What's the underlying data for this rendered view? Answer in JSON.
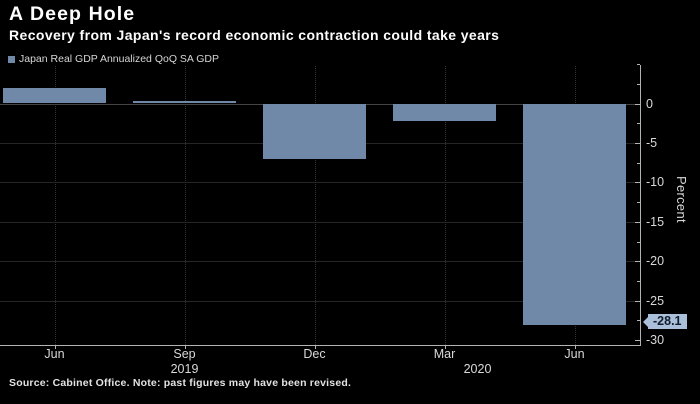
{
  "chart_data": {
    "type": "bar",
    "title": "A Deep Hole",
    "subtitle": "Recovery from Japan's record economic contraction could take years",
    "legend": [
      {
        "label": "Japan Real GDP Annualized QoQ SA GDP",
        "color": "#7189a9"
      }
    ],
    "categories": [
      "Jun",
      "Sep",
      "Dec",
      "Mar",
      "Jun"
    ],
    "x_year_labels": [
      "2019",
      "2020"
    ],
    "series": [
      {
        "name": "Japan Real GDP Annualized QoQ SA GDP",
        "values": [
          2.0,
          0.3,
          -7.0,
          -2.2,
          -28.1
        ]
      }
    ],
    "last_value_label": "-28.1",
    "ylabel": "Percent",
    "ylim": [
      -30,
      5
    ],
    "yticks_major": [
      0,
      -5,
      -10,
      -15,
      -20,
      -25,
      -30
    ],
    "yticks_minor": [
      5,
      2.5,
      -2.5,
      -7.5,
      -12.5,
      -17.5,
      -22.5,
      -27.5
    ],
    "grid": true,
    "legend_position": "top-left",
    "source_note": "Source: Cabinet Office. Note: past figures may have been revised.",
    "colors": {
      "background": "#000000",
      "bar": "#7189a9",
      "badge_bg": "#aabfd9",
      "badge_text": "#101c2b",
      "axis": "#b3b3b3",
      "tick_label": "#d9d9d9",
      "title": "#ffffff"
    }
  }
}
